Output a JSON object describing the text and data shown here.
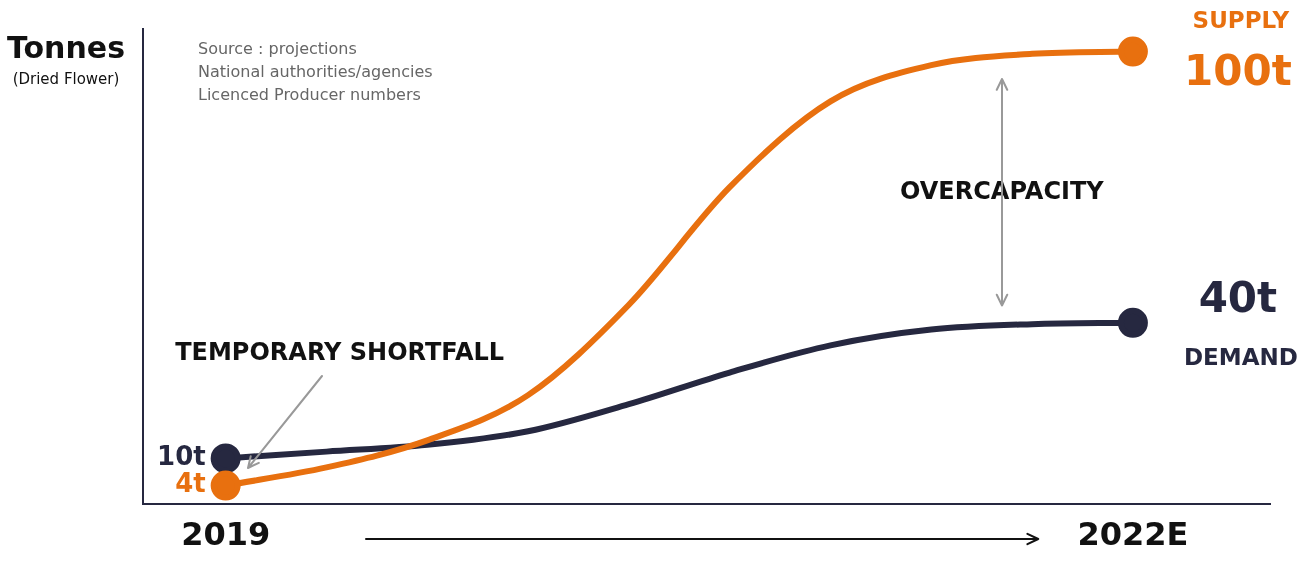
{
  "chart_data": {
    "type": "line",
    "ylabel": "Tonnes\n(Dried Flower)",
    "categories": [
      "2019",
      null,
      null,
      null,
      null,
      null,
      null,
      null,
      null,
      "2022E"
    ],
    "series": [
      {
        "name": "SUPPLY",
        "color": "#e8700f",
        "values": [
          4,
          8,
          14,
          24,
          44,
          70,
          89,
          97,
          99.5,
          100
        ],
        "value_labels": [
          "4t",
          null,
          null,
          null,
          null,
          null,
          null,
          null,
          null,
          "100t"
        ]
      },
      {
        "name": "DEMAND",
        "color": "#262840",
        "values": [
          10,
          11.5,
          13,
          16,
          22,
          29,
          35,
          38.5,
          39.7,
          40
        ],
        "value_labels": [
          "10t",
          null,
          null,
          null,
          null,
          null,
          null,
          null,
          null,
          "40t"
        ]
      }
    ],
    "ylim": [
      0,
      105
    ],
    "grid": false,
    "legend": false,
    "line_style": "solid",
    "annotations": [
      "Source : projections\nNational authorities/agencies\nLicenced Producer numbers",
      "TEMPORARY SHORTFALL",
      "OVERCAPACITY"
    ]
  }
}
